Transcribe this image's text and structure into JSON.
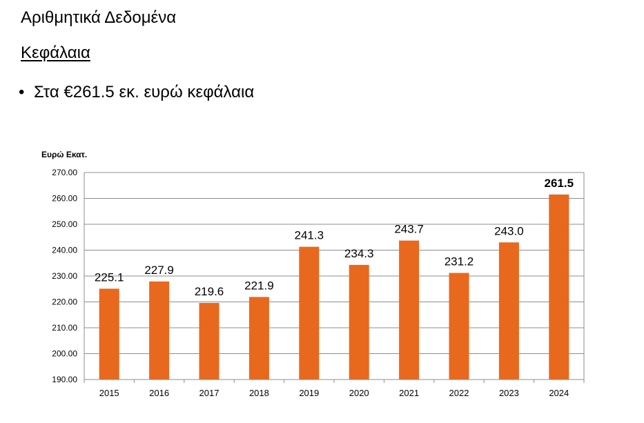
{
  "slide": {
    "title": "Αριθμητικά Δεδομένα",
    "heading": "Κεφάλαια",
    "bullet_symbol": "•",
    "bullet_text": "Στα €261.5 εκ. ευρώ κεφάλαια"
  },
  "chart_data": {
    "type": "bar",
    "title": "",
    "xlabel": "",
    "ylabel": "Ευρώ Εκατ.",
    "categories": [
      "2015",
      "2016",
      "2017",
      "2018",
      "2019",
      "2020",
      "2021",
      "2022",
      "2023",
      "2024"
    ],
    "values": [
      225.1,
      227.9,
      219.6,
      221.9,
      241.3,
      234.3,
      243.7,
      231.2,
      243.0,
      261.5
    ],
    "data_labels": [
      "225.1",
      "227.9",
      "219.6",
      "221.9",
      "241.3",
      "234.3",
      "243.7",
      "231.2",
      "243.0",
      "261.5"
    ],
    "y_ticks": [
      "190.00",
      "200.00",
      "210.00",
      "220.00",
      "230.00",
      "240.00",
      "250.00",
      "260.00",
      "270.00"
    ],
    "ylim": [
      190,
      270
    ],
    "grid": true,
    "legend": "none",
    "bar_color": "#E8681E",
    "highlight_bold_index": 9
  }
}
